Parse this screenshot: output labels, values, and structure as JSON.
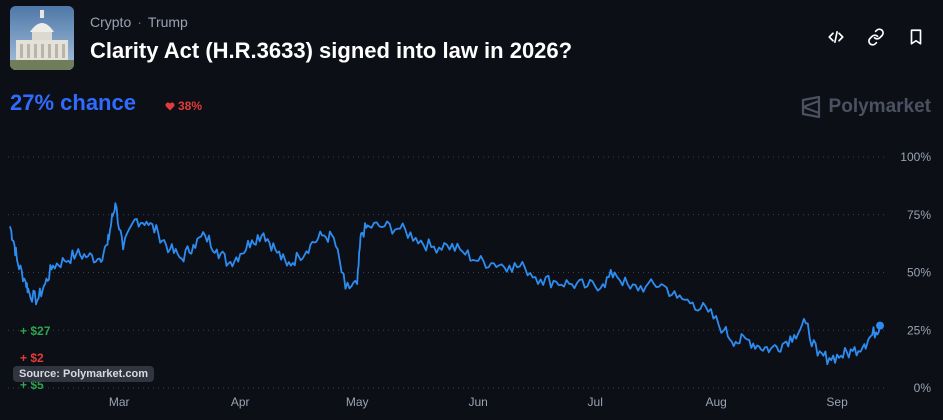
{
  "header": {
    "breadcrumbs": [
      "Crypto",
      "Trump"
    ],
    "separator": "·",
    "title": "Clarity Act (H.R.3633) signed into law in 2026?",
    "actions": [
      {
        "icon": "code-icon"
      },
      {
        "icon": "link-icon"
      },
      {
        "icon": "bookmark-icon"
      }
    ]
  },
  "market": {
    "chance": "27% chance",
    "delta": "38%",
    "delta_direction": "down",
    "brand": "Polymarket"
  },
  "trades": [
    "+ $27",
    "+ $2",
    "+ $5"
  ],
  "source": "Source: Polymarket.com",
  "colors": {
    "line": "#2d8cf0",
    "chance": "#2f6bff",
    "negative": "#e23b3b",
    "positive": "#2ea44f",
    "background": "#0c0f16"
  },
  "chart_data": {
    "type": "line",
    "x_ticks": [
      "Mar",
      "Apr",
      "May",
      "Jun",
      "Jul",
      "Aug",
      "Sep"
    ],
    "y_ticks": [
      "100%",
      "75%",
      "50%",
      "25%",
      "0%"
    ],
    "ylim": [
      0,
      100
    ],
    "grid": true,
    "series": [
      {
        "x": [
          "2026-02-01",
          "2026-02-02",
          "2026-02-03",
          "2026-02-05",
          "2026-02-06",
          "2026-02-08",
          "2026-02-10",
          "2026-02-12",
          "2026-02-15",
          "2026-02-18",
          "2026-02-21",
          "2026-02-24",
          "2026-02-26",
          "2026-02-27",
          "2026-02-28",
          "2026-03-02",
          "2026-03-05",
          "2026-03-08",
          "2026-03-11",
          "2026-03-14",
          "2026-03-17",
          "2026-03-20",
          "2026-03-23",
          "2026-03-26",
          "2026-03-29",
          "2026-04-01",
          "2026-04-04",
          "2026-04-07",
          "2026-04-10",
          "2026-04-13",
          "2026-04-16",
          "2026-04-19",
          "2026-04-22",
          "2026-04-25",
          "2026-04-28",
          "2026-05-01",
          "2026-05-02",
          "2026-05-04",
          "2026-05-08",
          "2026-05-12",
          "2026-05-16",
          "2026-05-20",
          "2026-05-24",
          "2026-05-28",
          "2026-06-01",
          "2026-06-05",
          "2026-06-09",
          "2026-06-13",
          "2026-06-17",
          "2026-06-21",
          "2026-06-25",
          "2026-06-29",
          "2026-07-03",
          "2026-07-06",
          "2026-07-10",
          "2026-07-14",
          "2026-07-18",
          "2026-07-22",
          "2026-07-26",
          "2026-07-30",
          "2026-08-03",
          "2026-08-06",
          "2026-08-09",
          "2026-08-12",
          "2026-08-15",
          "2026-08-18",
          "2026-08-21",
          "2026-08-24",
          "2026-08-27",
          "2026-08-30",
          "2026-09-02",
          "2026-09-05",
          "2026-09-08",
          "2026-09-10",
          "2026-09-12"
        ],
        "y": [
          70,
          63,
          54,
          46,
          41,
          38,
          45,
          53,
          55,
          58,
          57,
          56,
          62,
          72,
          80,
          60,
          73,
          72,
          67,
          60,
          56,
          62,
          66,
          60,
          54,
          58,
          64,
          67,
          60,
          53,
          57,
          62,
          66,
          65,
          43,
          45,
          67,
          70,
          70,
          69,
          65,
          61,
          62,
          59,
          55,
          54,
          53,
          52,
          47,
          46,
          45,
          44,
          45,
          50,
          43,
          44,
          45,
          39,
          37,
          33,
          25,
          20,
          21,
          18,
          17,
          19,
          23,
          28,
          14,
          13,
          14,
          16,
          19,
          23,
          27
        ]
      }
    ]
  }
}
